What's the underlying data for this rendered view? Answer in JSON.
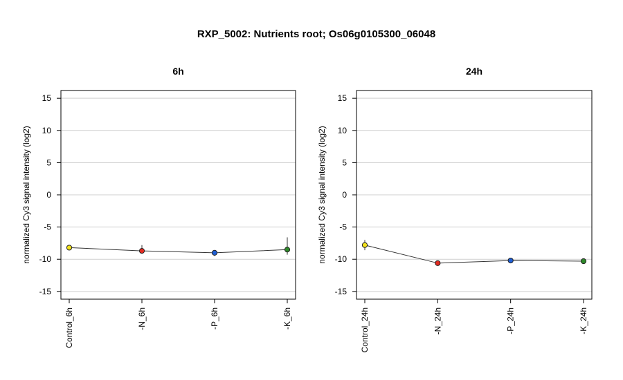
{
  "chart_data": {
    "type": "line",
    "title": "RXP_5002: Nutrients root; Os06g0105300_06048",
    "panels": [
      {
        "title": "6h",
        "ylabel": "normalized Cy3 signal intensity (log2)",
        "ylim": [
          -16.2,
          16.2
        ],
        "yticks": [
          15,
          10,
          5,
          0,
          -5,
          -10,
          -15
        ],
        "grid": true,
        "categories": [
          "Control_6h",
          "-N_6h",
          "-P_6h",
          "-K_6h"
        ],
        "values": [
          -8.2,
          -8.7,
          -9.0,
          -8.5
        ],
        "error_low": [
          -8.5,
          -9.1,
          -9.5,
          -9.3
        ],
        "error_high": [
          -7.9,
          -7.8,
          -8.6,
          -6.6
        ],
        "point_colors": [
          "#f2e11c",
          "#e32b21",
          "#1f5fd6",
          "#2e8a2a"
        ]
      },
      {
        "title": "24h",
        "ylabel": "normalized Cy3 signal intensity (log2)",
        "ylim": [
          -16.2,
          16.2
        ],
        "yticks": [
          15,
          10,
          5,
          0,
          -5,
          -10,
          -15
        ],
        "grid": true,
        "categories": [
          "Control_24h",
          "-N_24h",
          "-P_24h",
          "-K_24h"
        ],
        "values": [
          -7.8,
          -10.6,
          -10.2,
          -10.3
        ],
        "error_low": [
          -8.6,
          -10.8,
          -10.4,
          -10.5
        ],
        "error_high": [
          -7.0,
          -10.4,
          -10.0,
          -10.1
        ],
        "point_colors": [
          "#f2e11c",
          "#e32b21",
          "#1f5fd6",
          "#2e8a2a"
        ]
      }
    ]
  }
}
